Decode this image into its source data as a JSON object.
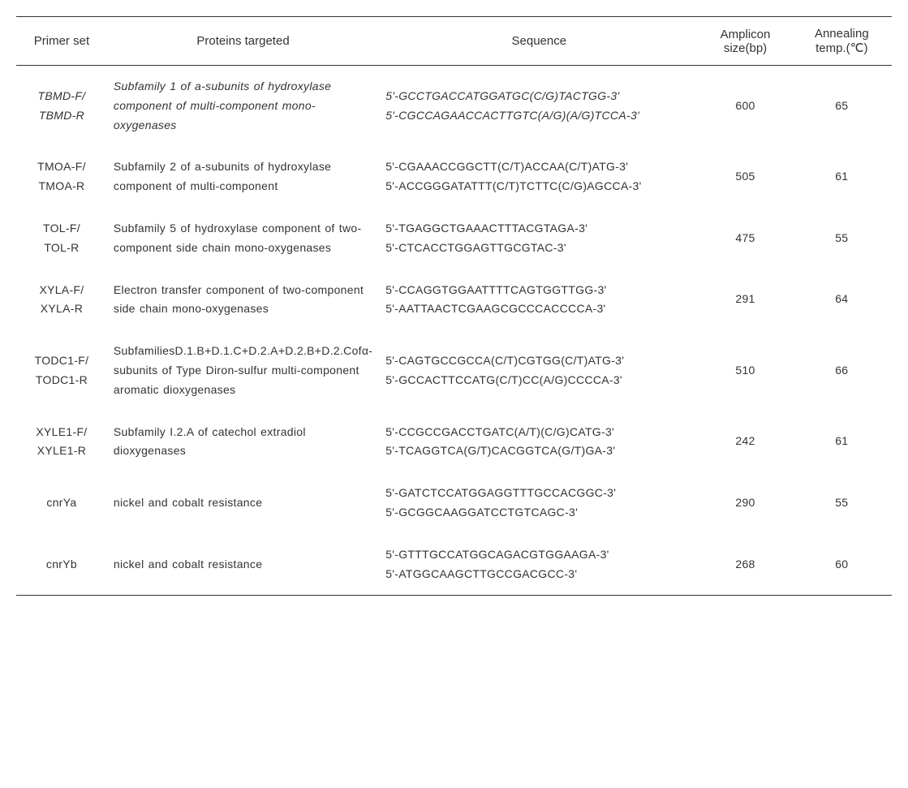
{
  "table": {
    "columns": {
      "primer": "Primer  set",
      "proteins": "Proteins targeted",
      "sequence": "Sequence",
      "amplicon_l1": "Amplicon",
      "amplicon_l2": "size(bp)",
      "annealing_l1": "Annealing",
      "annealing_l2": "temp.(℃)"
    },
    "rows": [
      {
        "primer_l1": "TBMD-F/",
        "primer_l2": "TBMD-R",
        "proteins": "Subfamily 1 of a-subunits of hydroxylase component of multi-component mono-oxygenases",
        "seq_l1": "5'-GCCTGACCATGGATGC(C/G)TACTGG-3'",
        "seq_l2": "5'-CGCCAGAACCACTTGTC(A/G)(A/G)TCCA-3'",
        "amplicon": "600",
        "annealing": "65",
        "italic": true
      },
      {
        "primer_l1": "TMOA-F/",
        "primer_l2": "TMOA-R",
        "proteins": "Subfamily 2 of a-subunits of hydroxylase component of multi-component",
        "seq_l1": "5'-CGAAACCGGCTT(C/T)ACCAA(C/T)ATG-3'",
        "seq_l2": "5'-ACCGGGATATTT(C/T)TCTTC(C/G)AGCCA-3'",
        "amplicon": "505",
        "annealing": "61",
        "italic": false
      },
      {
        "primer_l1": "TOL-F/",
        "primer_l2": "TOL-R",
        "proteins": "Subfamily 5 of hydroxylase component of two-component side chain mono-oxygenases",
        "seq_l1": "5'-TGAGGCTGAAACTTTACGTAGA-3'",
        "seq_l2": "5'-CTCACCTGGAGTTGCGTAC-3'",
        "amplicon": "475",
        "annealing": "55",
        "italic": false
      },
      {
        "primer_l1": "XYLA-F/",
        "primer_l2": "XYLA-R",
        "proteins": "Electron transfer component of  two-component side chain mono-oxygenases",
        "seq_l1": "5'-CCAGGTGGAATTTTCAGTGGTTGG-3'",
        "seq_l2": "5'-AATTAACTCGAAGCGCCCACCCCA-3'",
        "amplicon": "291",
        "annealing": "64",
        "italic": false
      },
      {
        "primer_l1": "TODC1-F/",
        "primer_l2": "TODC1-R",
        "proteins": "SubfamiliesD.1.B+D.1.C+D.2.A+D.2.B+D.2.Cofα-subunits of Type Diron-sulfur multi-component aromatic dioxygenases",
        "seq_l1": "5'-CAGTGCCGCCA(C/T)CGTGG(C/T)ATG-3'",
        "seq_l2": "5'-GCCACTTCCATG(C/T)CC(A/G)CCCCA-3'",
        "amplicon": "510",
        "annealing": "66",
        "italic": false
      },
      {
        "primer_l1": "XYLE1-F/",
        "primer_l2": "XYLE1-R",
        "proteins": "Subfamily I.2.A of catechol extradiol dioxygenases",
        "seq_l1": "5'-CCGCCGACCTGATC(A/T)(C/G)CATG-3'",
        "seq_l2": "5'-TCAGGTCA(G/T)CACGGTCA(G/T)GA-3'",
        "amplicon": "242",
        "annealing": "61",
        "italic": false
      },
      {
        "primer_l1": "cnrYa",
        "primer_l2": "",
        "proteins": "nickel and cobalt resistance",
        "seq_l1": "5'-GATCTCCATGGAGGTTTGCCACGGC-3'",
        "seq_l2": "5'-GCGGCAAGGATCCTGTCAGC-3'",
        "amplicon": "290",
        "annealing": "55",
        "italic": false
      },
      {
        "primer_l1": "cnrYb",
        "primer_l2": "",
        "proteins": "nickel and cobalt resistance",
        "seq_l1": "5'-GTTTGCCATGGCAGACGTGGAAGA-3'",
        "seq_l2": "5'-ATGGCAAGCTTGCCGACGCC-3'",
        "amplicon": "268",
        "annealing": "60",
        "italic": false
      }
    ],
    "styling": {
      "border_color": "#333333",
      "text_color": "#333333",
      "background_color": "#ffffff",
      "header_fontsize": 15,
      "body_fontsize": 14,
      "line_height": 1.7
    }
  }
}
